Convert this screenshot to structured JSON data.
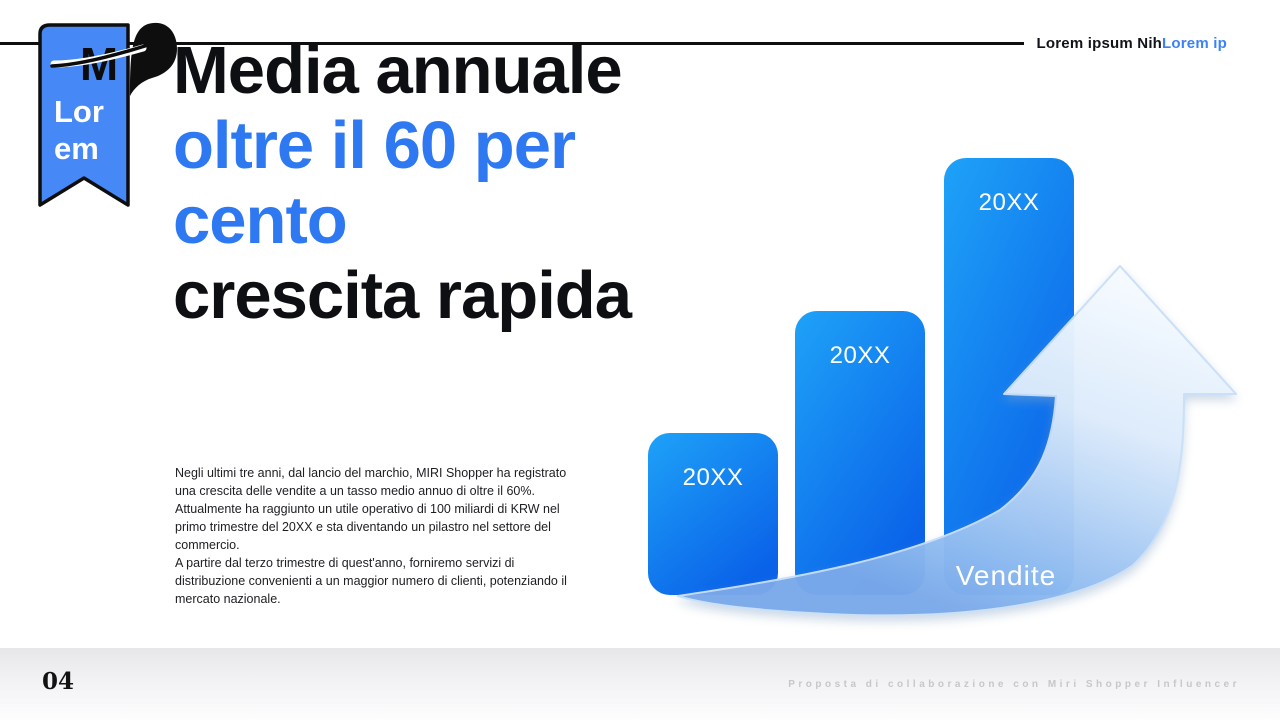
{
  "header": {
    "brand_black": "Lorem ipsum Nih",
    "brand_blue": "Lorem ip"
  },
  "ribbon": {
    "logo_letter": "M",
    "label_line1": "Lor",
    "label_line2": "em"
  },
  "title": {
    "line1": "Media annuale",
    "line2": "oltre il 60 per",
    "line3": "cento",
    "line4": "crescita rapida"
  },
  "body": {
    "paragraphs": [
      "Negli ultimi tre anni, dal lancio del marchio, MIRI Shopper ha registrato una crescita delle vendite a un tasso medio annuo di oltre il 60%.",
      "Attualmente ha raggiunto un utile operativo di 100 miliardi di KRW nel primo trimestre del 20XX e sta diventando un pilastro nel settore del commercio.",
      "A partire dal terzo trimestre di quest'anno, forniremo servizi di distribuzione convenienti a un maggior numero di clienti, potenziando il mercato nazionale."
    ]
  },
  "chart_data": {
    "type": "bar",
    "categories": [
      "20XX",
      "20XX",
      "20XX"
    ],
    "values": [
      37,
      65,
      100
    ],
    "values_unit": "relative-height-percent",
    "title": "",
    "xlabel": "",
    "ylabel": "",
    "legend": [
      "Vendite"
    ],
    "annotations": [
      "upward growth arrow behind bars"
    ],
    "grid": false,
    "axes_shown": false
  },
  "footer": {
    "page_number": "04",
    "caption": "Proposta di collaborazione con Miri Shopper Influencer"
  },
  "colors": {
    "title_blue": "#2e79f2",
    "header_blue": "#3b82f6",
    "ribbon_blue": "#4689f6",
    "bar_gradient_start": "#1ea2f8",
    "bar_gradient_end": "#0a62e8",
    "arrow_light": "#eaf4fd",
    "arrow_deep": "#7aa9ea",
    "footer_text": "#c7c7cb"
  }
}
